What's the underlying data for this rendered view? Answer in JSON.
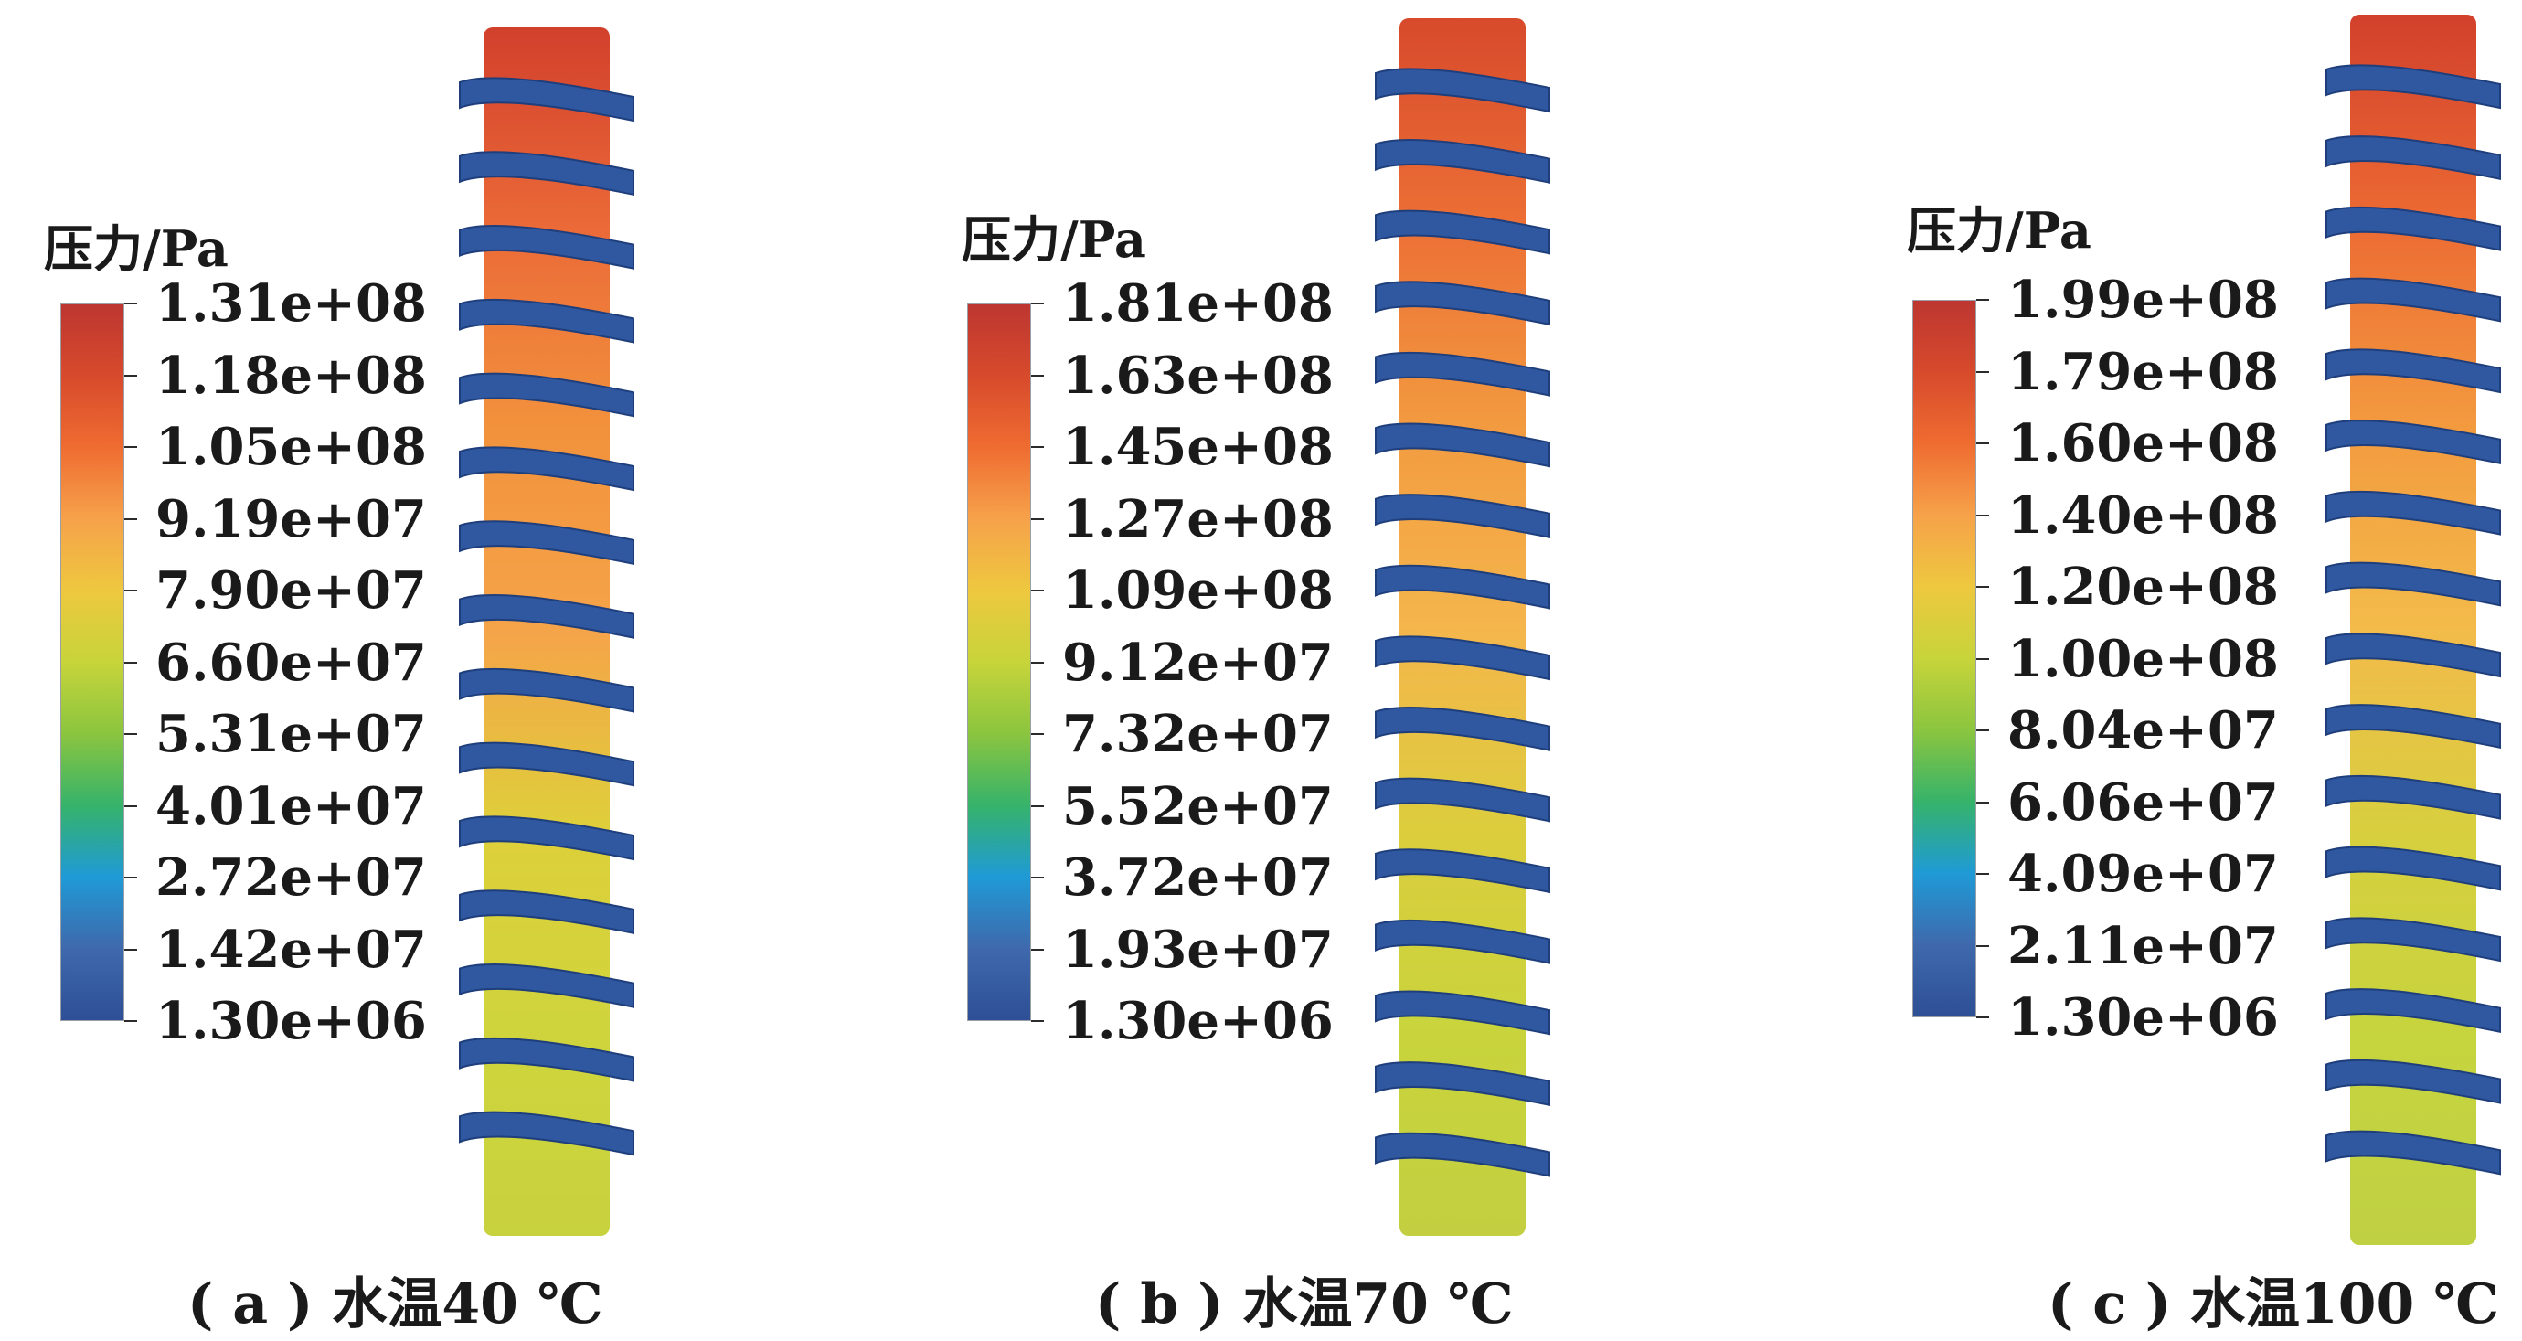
{
  "colormap": [
    "#2e4f95",
    "#3f69ac",
    "#1f9ad6",
    "#36b36a",
    "#8bc53f",
    "#c7d43a",
    "#eec83f",
    "#f6a24a",
    "#ef6c31",
    "#d74a2c",
    "#bd3631"
  ],
  "coil_color": "#2f58a0",
  "cylinder_gradient": {
    "a": [
      "#d2402c",
      "#eb6a38",
      "#f2923c",
      "#f5a449",
      "#ded03a",
      "#cfd43c",
      "#c8d23e"
    ],
    "b": [
      "#d74a2c",
      "#ec6f35",
      "#f29a40",
      "#f5b64c",
      "#dccd3d",
      "#c9d43c",
      "#c3cf40"
    ],
    "c": [
      "#d2402c",
      "#ec6a33",
      "#f39a3f",
      "#f3bb4a",
      "#d7cf3e",
      "#c6d43e",
      "#bfd043"
    ]
  },
  "panels": [
    {
      "id": "a",
      "legend_title": "压力/Pa",
      "ticks": [
        "1.31e+08",
        "1.18e+08",
        "1.05e+08",
        "9.19e+07",
        "7.90e+07",
        "6.60e+07",
        "5.31e+07",
        "4.01e+07",
        "2.72e+07",
        "1.42e+07",
        "1.30e+06"
      ],
      "caption": "( a ) 水温40 ℃"
    },
    {
      "id": "b",
      "legend_title": "压力/Pa",
      "ticks": [
        "1.81e+08",
        "1.63e+08",
        "1.45e+08",
        "1.27e+08",
        "1.09e+08",
        "9.12e+07",
        "7.32e+07",
        "5.52e+07",
        "3.72e+07",
        "1.93e+07",
        "1.30e+06"
      ],
      "caption": "( b ) 水温70 ℃"
    },
    {
      "id": "c",
      "legend_title": "压力/Pa",
      "ticks": [
        "1.99e+08",
        "1.79e+08",
        "1.60e+08",
        "1.40e+08",
        "1.20e+08",
        "1.00e+08",
        "8.04e+07",
        "6.06e+07",
        "4.09e+07",
        "2.11e+07",
        "1.30e+06"
      ],
      "caption": "( c ) 水温100 ℃"
    }
  ]
}
